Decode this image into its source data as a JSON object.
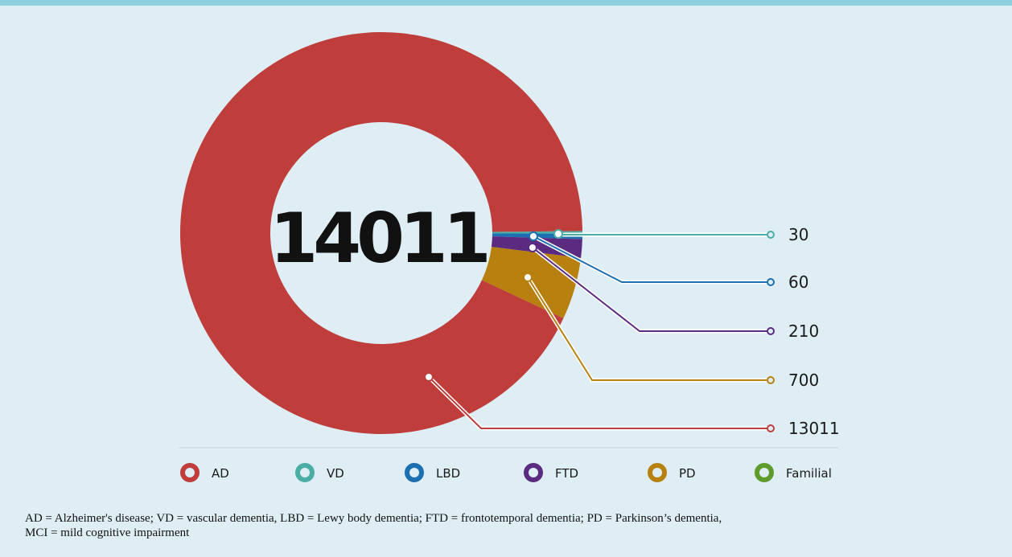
{
  "chart_data": {
    "type": "pie",
    "center_label": "14011",
    "categories": [
      "AD",
      "VD",
      "LBD",
      "FTD",
      "PD",
      "Familial"
    ],
    "colors": [
      "#bf3e3c",
      "#4aaea4",
      "#1c6fb0",
      "#5b2b82",
      "#b8800f",
      "#5e9a2c"
    ],
    "slices": [
      {
        "name": "AD",
        "label": "13011",
        "value": 13011,
        "color": "#bf3e3c"
      },
      {
        "name": "PD",
        "label": "700",
        "value": 700,
        "color": "#b8800f"
      },
      {
        "name": "FTD",
        "label": "210",
        "value": 210,
        "color": "#5b2b82"
      },
      {
        "name": "LBD",
        "label": "60",
        "value": 60,
        "color": "#1c6fb0"
      },
      {
        "name": "VD",
        "label": "30",
        "value": 30,
        "color": "#4aaea4"
      }
    ],
    "legend": [
      {
        "label": "AD",
        "color": "#bf3e3c"
      },
      {
        "label": "VD",
        "color": "#4aaea4"
      },
      {
        "label": "LBD",
        "color": "#1c6fb0"
      },
      {
        "label": "FTD",
        "color": "#5b2b82"
      },
      {
        "label": "PD",
        "color": "#b8800f"
      },
      {
        "label": "Familial",
        "color": "#5e9a2c"
      }
    ],
    "legend_position": "bottom"
  },
  "footnote": {
    "line1": "AD = Alzheimer's disease; VD = vascular dementia, LBD = Lewy body dementia; FTD = frontotemporal dementia; PD = Parkinson’s dementia,",
    "line2": "MCI = mild cognitive impairment"
  }
}
